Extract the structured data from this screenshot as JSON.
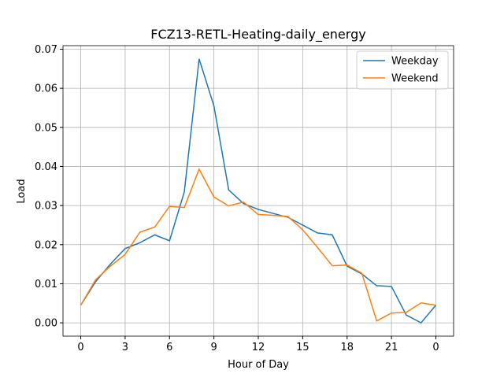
{
  "chart_data": {
    "type": "line",
    "title": "FCZ13-RETL-Heating-daily_energy",
    "x_label": "Hour of Day",
    "y_label": "Load",
    "x": [
      0,
      1,
      2,
      3,
      4,
      5,
      6,
      7,
      8,
      9,
      10,
      11,
      12,
      13,
      14,
      15,
      16,
      17,
      18,
      19,
      20,
      21,
      22,
      23,
      24
    ],
    "series": [
      {
        "name": "Weekday",
        "color": "#1f77b4",
        "values": [
          0.0045,
          0.0105,
          0.015,
          0.019,
          0.0205,
          0.0225,
          0.021,
          0.0335,
          0.0675,
          0.0555,
          0.034,
          0.0305,
          0.029,
          0.028,
          0.027,
          0.025,
          0.023,
          0.0225,
          0.0145,
          0.0125,
          0.0095,
          0.0093,
          0.002,
          0.0,
          0.0045
        ]
      },
      {
        "name": "Weekend",
        "color": "#ff7f0e",
        "values": [
          0.0045,
          0.011,
          0.0145,
          0.0175,
          0.0232,
          0.0245,
          0.0298,
          0.0295,
          0.0393,
          0.0322,
          0.0299,
          0.0309,
          0.0277,
          0.0275,
          0.0272,
          0.0238,
          0.0193,
          0.0146,
          0.0148,
          0.0127,
          0.0005,
          0.0025,
          0.0027,
          0.0051,
          0.0045
        ]
      }
    ],
    "xlim": [
      -1.2,
      25.2
    ],
    "xticks": [
      0,
      3,
      6,
      9,
      12,
      15,
      18,
      21,
      {
        "value": 24,
        "label": "0"
      }
    ],
    "ylim": [
      -0.0034,
      0.0709
    ],
    "yticks": [
      {
        "value": 0,
        "label": "0.00"
      },
      {
        "value": 0.01,
        "label": "0.01"
      },
      {
        "value": 0.02,
        "label": "0.02"
      },
      {
        "value": 0.03,
        "label": "0.03"
      },
      {
        "value": 0.04,
        "label": "0.04"
      },
      {
        "value": 0.05,
        "label": "0.05"
      },
      {
        "value": 0.06,
        "label": "0.06"
      },
      {
        "value": 0.07,
        "label": "0.07"
      }
    ],
    "grid": true,
    "legend": "upper right"
  }
}
